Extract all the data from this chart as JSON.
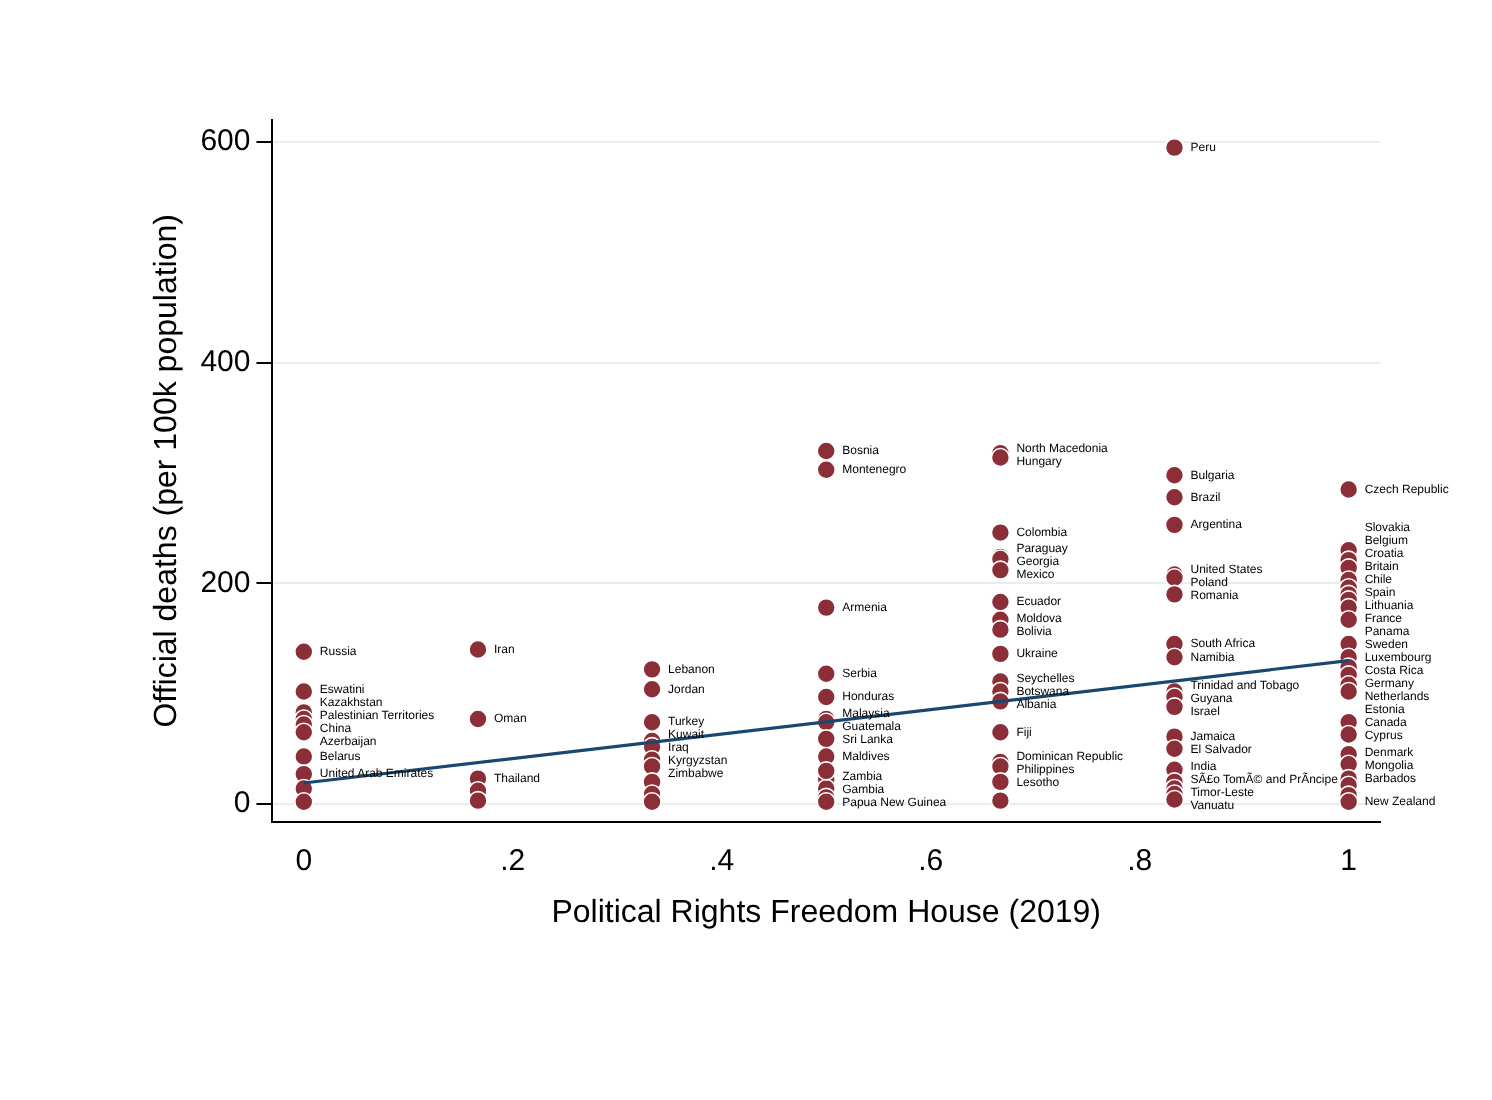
{
  "chart_data": {
    "type": "scatter",
    "xlabel": "Political Rights Freedom House (2019)",
    "ylabel": "Official deaths (per 100k population)",
    "xlim": [
      -0.03,
      1.03
    ],
    "ylim": [
      -16,
      620
    ],
    "xticks": [
      0,
      {
        "value": 0.2,
        "label": ".2"
      },
      {
        "value": 0.4,
        "label": ".4"
      },
      {
        "value": 0.6,
        "label": ".6"
      },
      {
        "value": 0.8,
        "label": ".8"
      },
      1
    ],
    "yticks": [
      0,
      200,
      400,
      600
    ],
    "grid": "y",
    "legend": false,
    "marker": "circle",
    "series": [
      {
        "color": "#8b2e38",
        "x": [
          0,
          0,
          0,
          0,
          0,
          0,
          0,
          0,
          0,
          0,
          0.1667,
          0.1667,
          0.1667,
          0.1667,
          0.1667,
          0.3333,
          0.3333,
          0.3333,
          0.3333,
          0.3333,
          0.3333,
          0.3333,
          0.3333,
          0.3333,
          0.3333,
          0.5,
          0.5,
          0.5,
          0.5,
          0.5,
          0.5,
          0.5,
          0.5,
          0.5,
          0.5,
          0.5,
          0.5,
          0.5,
          0.5,
          0.6667,
          0.6667,
          0.6667,
          0.6667,
          0.6667,
          0.6667,
          0.6667,
          0.6667,
          0.6667,
          0.6667,
          0.6667,
          0.6667,
          0.6667,
          0.6667,
          0.6667,
          0.6667,
          0.6667,
          0.6667,
          0.8333,
          0.8333,
          0.8333,
          0.8333,
          0.8333,
          0.8333,
          0.8333,
          0.8333,
          0.8333,
          0.8333,
          0.8333,
          0.8333,
          0.8333,
          0.8333,
          0.8333,
          0.8333,
          0.8333,
          0.8333,
          0.8333,
          1,
          1,
          1,
          1,
          1,
          1,
          1,
          1,
          1,
          1,
          1,
          1,
          1,
          1,
          1,
          1,
          1,
          1,
          1,
          1,
          1,
          1,
          1,
          1
        ],
        "values": [
          138,
          102,
          83,
          77,
          72,
          65,
          43,
          27,
          14,
          2,
          140,
          77,
          23,
          12,
          3,
          122,
          104,
          74,
          57,
          52,
          40,
          34,
          20,
          9,
          2,
          320,
          303,
          178,
          118,
          97,
          77,
          74,
          59,
          43,
          22,
          14,
          6,
          2,
          30,
          318,
          314,
          246,
          224,
          222,
          212,
          183,
          167,
          158,
          136,
          111,
          102,
          93,
          65,
          38,
          34,
          20,
          3,
          595,
          298,
          278,
          253,
          208,
          205,
          190,
          145,
          133,
          102,
          97,
          88,
          61,
          50,
          31,
          20,
          14,
          9,
          4,
          285,
          230,
          221,
          214,
          203,
          196,
          190,
          185,
          178,
          167,
          145,
          133,
          124,
          117,
          108,
          102,
          74,
          63,
          45,
          36,
          23,
          17,
          8,
          2
        ]
      },
      {
        "type": "line",
        "color": "#1a476f",
        "marker": "none",
        "x": [
          0,
          1
        ],
        "values": [
          19,
          130
        ]
      }
    ],
    "annotations": [
      {
        "text": "Russia",
        "x": 0,
        "y": 138
      },
      {
        "text": "Eswatini",
        "x": 0,
        "y": 102
      },
      {
        "text": "Kazakhstan",
        "x": 0,
        "y": 83
      },
      {
        "text": "Palestinian Territories",
        "x": 0,
        "y": 77
      },
      {
        "text": "China",
        "x": 0,
        "y": 72
      },
      {
        "text": "Azerbaijan",
        "x": 0,
        "y": 65
      },
      {
        "text": "Belarus",
        "x": 0,
        "y": 43
      },
      {
        "text": "United Arab Emirates",
        "x": 0,
        "y": 27
      },
      {
        "text": "Iran",
        "x": 0.1667,
        "y": 140
      },
      {
        "text": "Oman",
        "x": 0.1667,
        "y": 77
      },
      {
        "text": "Thailand",
        "x": 0.1667,
        "y": 23
      },
      {
        "text": "Lebanon",
        "x": 0.3333,
        "y": 122
      },
      {
        "text": "Jordan",
        "x": 0.3333,
        "y": 104
      },
      {
        "text": "Turkey",
        "x": 0.3333,
        "y": 74
      },
      {
        "text": "Kuwait",
        "x": 0.3333,
        "y": 57
      },
      {
        "text": "Iraq",
        "x": 0.3333,
        "y": 52
      },
      {
        "text": "Kyrgyzstan",
        "x": 0.3333,
        "y": 40
      },
      {
        "text": "Zimbabwe",
        "x": 0.3333,
        "y": 34
      },
      {
        "text": "Bosnia",
        "x": 0.5,
        "y": 320
      },
      {
        "text": "Montenegro",
        "x": 0.5,
        "y": 303
      },
      {
        "text": "Armenia",
        "x": 0.5,
        "y": 178
      },
      {
        "text": "Serbia",
        "x": 0.5,
        "y": 118
      },
      {
        "text": "Honduras",
        "x": 0.5,
        "y": 97
      },
      {
        "text": "Malaysia",
        "x": 0.5,
        "y": 77
      },
      {
        "text": "Guatemala",
        "x": 0.5,
        "y": 74
      },
      {
        "text": "Sri Lanka",
        "x": 0.5,
        "y": 59
      },
      {
        "text": "Maldives",
        "x": 0.5,
        "y": 43
      },
      {
        "text": "Zambia",
        "x": 0.5,
        "y": 22
      },
      {
        "text": "Gambia",
        "x": 0.5,
        "y": 14
      },
      {
        "text": "Papua New Guinea",
        "x": 0.5,
        "y": 2
      },
      {
        "text": "North Macedonia",
        "x": 0.6667,
        "y": 318
      },
      {
        "text": "Hungary",
        "x": 0.6667,
        "y": 314
      },
      {
        "text": "Colombia",
        "x": 0.6667,
        "y": 246
      },
      {
        "text": "Paraguay",
        "x": 0.6667,
        "y": 224
      },
      {
        "text": "Georgia",
        "x": 0.6667,
        "y": 222
      },
      {
        "text": "Mexico",
        "x": 0.6667,
        "y": 212
      },
      {
        "text": "Ecuador",
        "x": 0.6667,
        "y": 183
      },
      {
        "text": "Moldova",
        "x": 0.6667,
        "y": 167
      },
      {
        "text": "Bolivia",
        "x": 0.6667,
        "y": 158
      },
      {
        "text": "Ukraine",
        "x": 0.6667,
        "y": 136
      },
      {
        "text": "Seychelles",
        "x": 0.6667,
        "y": 111
      },
      {
        "text": "Botswana",
        "x": 0.6667,
        "y": 102
      },
      {
        "text": "Albania",
        "x": 0.6667,
        "y": 93
      },
      {
        "text": "Fiji",
        "x": 0.6667,
        "y": 65
      },
      {
        "text": "Dominican Republic",
        "x": 0.6667,
        "y": 38
      },
      {
        "text": "Philippines",
        "x": 0.6667,
        "y": 34
      },
      {
        "text": "Lesotho",
        "x": 0.6667,
        "y": 20
      },
      {
        "text": "Peru",
        "x": 0.8333,
        "y": 595
      },
      {
        "text": "Bulgaria",
        "x": 0.8333,
        "y": 298
      },
      {
        "text": "Brazil",
        "x": 0.8333,
        "y": 278
      },
      {
        "text": "Argentina",
        "x": 0.8333,
        "y": 253
      },
      {
        "text": "United States",
        "x": 0.8333,
        "y": 208
      },
      {
        "text": "Poland",
        "x": 0.8333,
        "y": 205
      },
      {
        "text": "Romania",
        "x": 0.8333,
        "y": 190
      },
      {
        "text": "South Africa",
        "x": 0.8333,
        "y": 145
      },
      {
        "text": "Namibia",
        "x": 0.8333,
        "y": 133
      },
      {
        "text": "Trinidad and Tobago",
        "x": 0.8333,
        "y": 102
      },
      {
        "text": "Guyana",
        "x": 0.8333,
        "y": 97
      },
      {
        "text": "Israel",
        "x": 0.8333,
        "y": 88
      },
      {
        "text": "Jamaica",
        "x": 0.8333,
        "y": 61
      },
      {
        "text": "El Salvador",
        "x": 0.8333,
        "y": 50
      },
      {
        "text": "India",
        "x": 0.8333,
        "y": 31
      },
      {
        "text": "SÃ£o TomÃ© and PrÃncipe",
        "x": 0.8333,
        "y": 20
      },
      {
        "text": "Timor-Leste",
        "x": 0.8333,
        "y": 9
      },
      {
        "text": "Vanuatu",
        "x": 0.8333,
        "y": 4
      },
      {
        "text": "Czech Republic",
        "x": 1,
        "y": 285
      },
      {
        "text": "Slovakia",
        "x": 1,
        "y": 230
      },
      {
        "text": "Belgium",
        "x": 1,
        "y": 221
      },
      {
        "text": "Croatia",
        "x": 1,
        "y": 214
      },
      {
        "text": "Britain",
        "x": 1,
        "y": 203
      },
      {
        "text": "Chile",
        "x": 1,
        "y": 196
      },
      {
        "text": "Spain",
        "x": 1,
        "y": 190
      },
      {
        "text": "Lithuania",
        "x": 1,
        "y": 185
      },
      {
        "text": "France",
        "x": 1,
        "y": 178
      },
      {
        "text": "Panama",
        "x": 1,
        "y": 167
      },
      {
        "text": "Sweden",
        "x": 1,
        "y": 145
      },
      {
        "text": "Luxembourg",
        "x": 1,
        "y": 133
      },
      {
        "text": "Costa Rica",
        "x": 1,
        "y": 124
      },
      {
        "text": "Germany",
        "x": 1,
        "y": 117
      },
      {
        "text": "Netherlands",
        "x": 1,
        "y": 108
      },
      {
        "text": "Estonia",
        "x": 1,
        "y": 102
      },
      {
        "text": "Canada",
        "x": 1,
        "y": 74
      },
      {
        "text": "Cyprus",
        "x": 1,
        "y": 63
      },
      {
        "text": "Denmark",
        "x": 1,
        "y": 45
      },
      {
        "text": "Mongolia",
        "x": 1,
        "y": 36
      },
      {
        "text": "Barbados",
        "x": 1,
        "y": 23
      },
      {
        "text": "New Zealand",
        "x": 1,
        "y": 2
      }
    ]
  }
}
